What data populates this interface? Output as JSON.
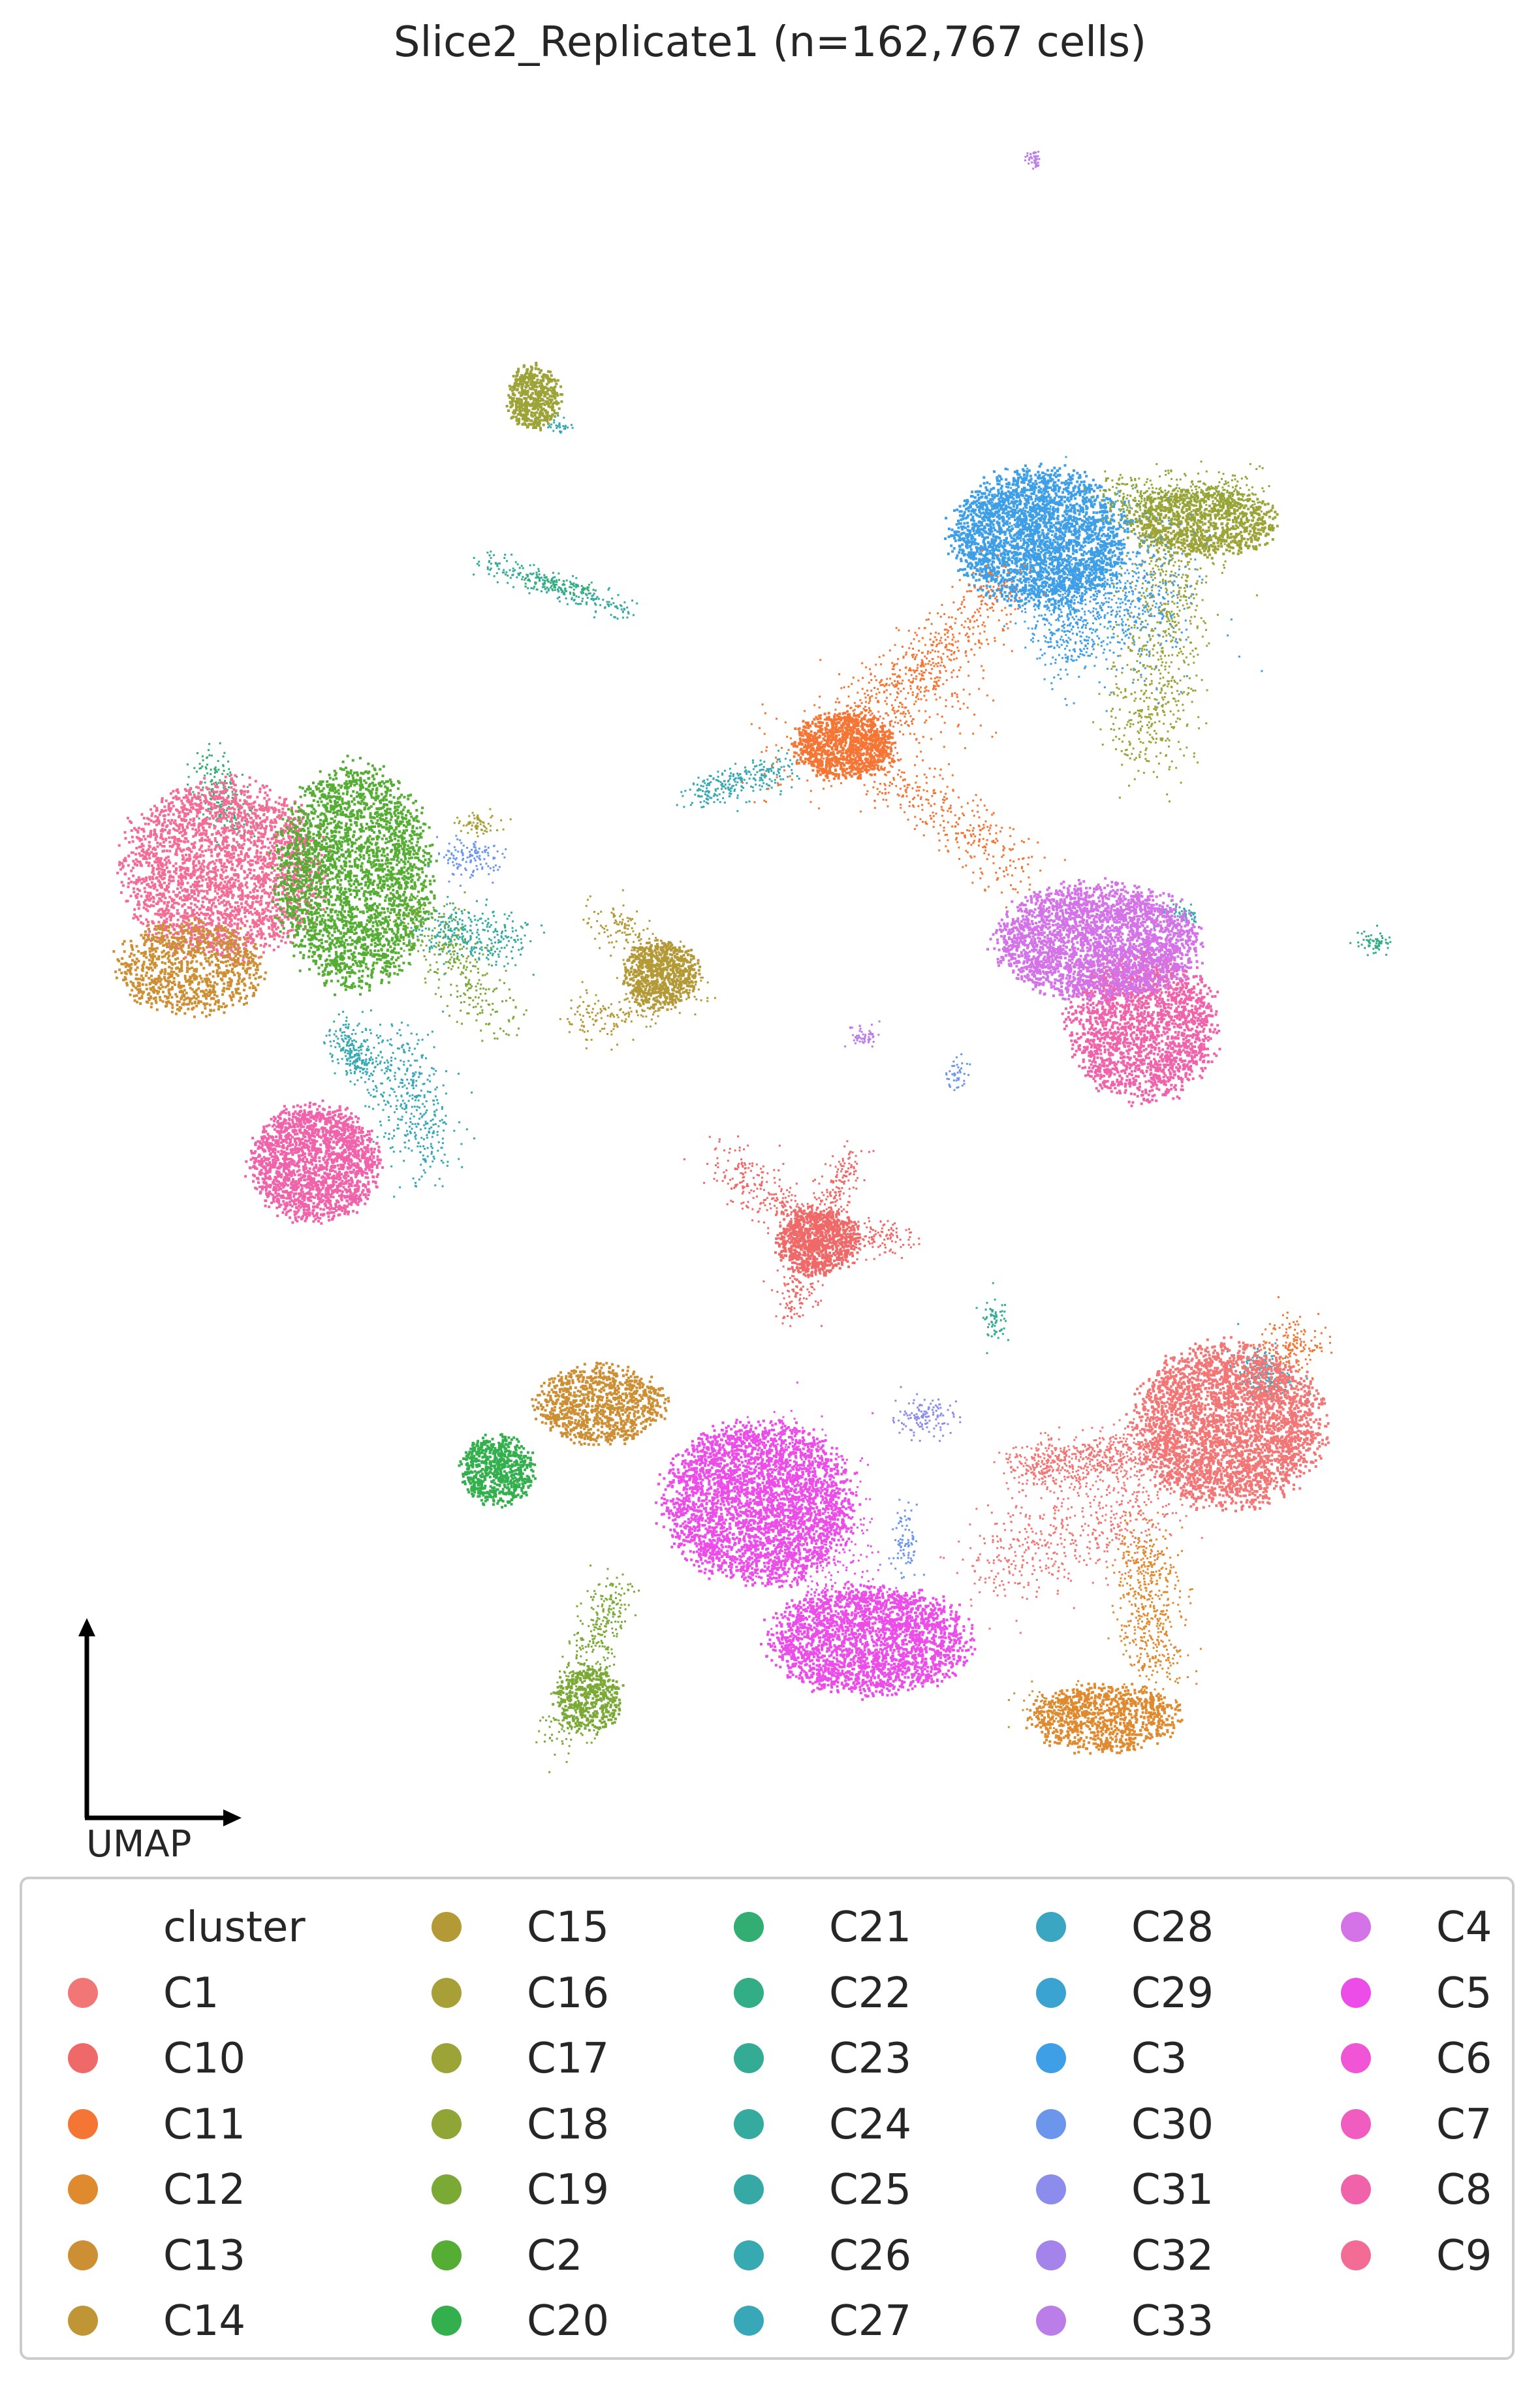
{
  "chart_data": {
    "type": "scatter",
    "title": "Slice2_Replicate1 (n=162,767 cells)",
    "axis_label": "UMAP",
    "xlabel": "",
    "ylabel": "",
    "grid": false,
    "axes_visible": false,
    "legend_title": "cluster",
    "legend_placement": "bottom",
    "legend_columns": 5,
    "series": [
      {
        "name": "C1",
        "color": "#f37676"
      },
      {
        "name": "C10",
        "color": "#f06969"
      },
      {
        "name": "C11",
        "color": "#f47534"
      },
      {
        "name": "C12",
        "color": "#e08a2f"
      },
      {
        "name": "C13",
        "color": "#cc8f33"
      },
      {
        "name": "C14",
        "color": "#c09536"
      },
      {
        "name": "C15",
        "color": "#b49a37"
      },
      {
        "name": "C16",
        "color": "#a89f37"
      },
      {
        "name": "C17",
        "color": "#9ca337"
      },
      {
        "name": "C18",
        "color": "#8fa536"
      },
      {
        "name": "C19",
        "color": "#7aa935"
      },
      {
        "name": "C2",
        "color": "#55ae33"
      },
      {
        "name": "C20",
        "color": "#33b04d"
      },
      {
        "name": "C21",
        "color": "#32ae72"
      },
      {
        "name": "C22",
        "color": "#33ad86"
      },
      {
        "name": "C23",
        "color": "#34ab94"
      },
      {
        "name": "C24",
        "color": "#35aa9e"
      },
      {
        "name": "C25",
        "color": "#36a9a7"
      },
      {
        "name": "C26",
        "color": "#37a9b0"
      },
      {
        "name": "C27",
        "color": "#38a8b8"
      },
      {
        "name": "C28",
        "color": "#3aa6c2"
      },
      {
        "name": "C29",
        "color": "#3ba3cf"
      },
      {
        "name": "C3",
        "color": "#3f9fe6"
      },
      {
        "name": "C30",
        "color": "#6c95ec"
      },
      {
        "name": "C31",
        "color": "#8b8ceb"
      },
      {
        "name": "C32",
        "color": "#a483ea"
      },
      {
        "name": "C33",
        "color": "#bb7ee9"
      },
      {
        "name": "C4",
        "color": "#d373e7"
      },
      {
        "name": "C5",
        "color": "#ec4ce8"
      },
      {
        "name": "C6",
        "color": "#ef55d4"
      },
      {
        "name": "C7",
        "color": "#f05cc0"
      },
      {
        "name": "C8",
        "color": "#f062aa"
      },
      {
        "name": "C9",
        "color": "#f26c96"
      }
    ]
  }
}
